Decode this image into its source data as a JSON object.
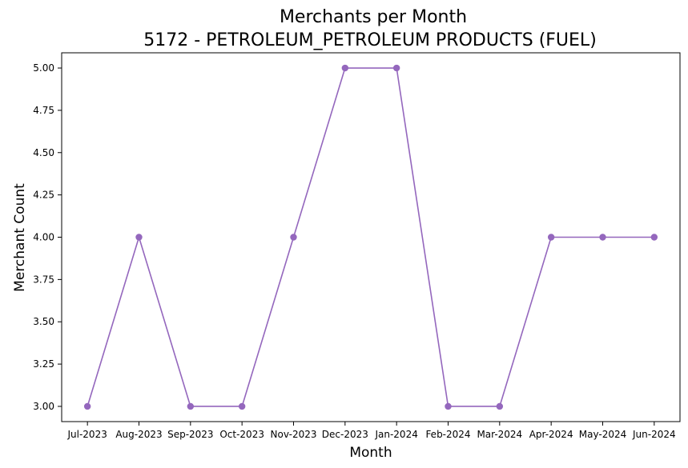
{
  "chart_data": {
    "type": "line",
    "title": "Merchants per Month",
    "subtitle": "5172 - PETROLEUM_PETROLEUM PRODUCTS (FUEL)",
    "xlabel": "Month",
    "ylabel": "Merchant Count",
    "categories": [
      "Jul-2023",
      "Aug-2023",
      "Sep-2023",
      "Oct-2023",
      "Nov-2023",
      "Dec-2023",
      "Jan-2024",
      "Feb-2024",
      "Mar-2024",
      "Apr-2024",
      "May-2024",
      "Jun-2024"
    ],
    "series": [
      {
        "values": [
          3,
          4,
          3,
          3,
          4,
          5,
          5,
          3,
          3,
          4,
          4,
          4
        ],
        "color": "#9467bd",
        "marker": "circle"
      }
    ],
    "ylim": [
      2.91,
      5.09
    ],
    "yticks": [
      3.0,
      3.25,
      3.5,
      3.75,
      4.0,
      4.25,
      4.5,
      4.75,
      5.0
    ],
    "ytick_labels": [
      "3.00",
      "3.25",
      "3.50",
      "3.75",
      "4.00",
      "4.25",
      "4.50",
      "4.75",
      "5.00"
    ],
    "grid": false,
    "legend": "none"
  }
}
